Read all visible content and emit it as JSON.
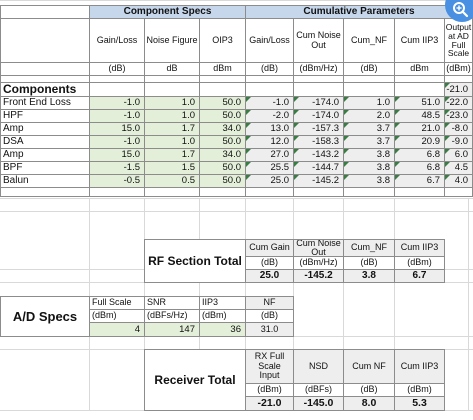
{
  "sections": {
    "component_specs": "Component  Specs",
    "cumulative_parameters": "Cumulative Parameters",
    "components_label": "Components",
    "rf_total_label": "RF Section Total",
    "ad_specs_label": "A/D Specs",
    "receiver_total_label": "Receiver Total"
  },
  "headers": {
    "gain_loss": "Gain/Loss",
    "noise_figure": "Noise Figure",
    "oip3": "OIP3",
    "cum_gain_loss": "Gain/Loss",
    "cum_noise_out": "Cum Noise Out",
    "cum_nf": "Cum_NF",
    "cum_iip3": "Cum IIP3",
    "output_ad": "Output at AD Full Scale"
  },
  "units": {
    "gain_loss": "(dB)",
    "noise_figure": "dB",
    "oip3": "dBm",
    "cum_gain_loss": "(dB)",
    "cum_noise_out": "(dBm/Hz)",
    "cum_nf": "(dB)",
    "cum_iip3": "dBm",
    "output_ad": "(dBm)"
  },
  "components_output": "-21.0",
  "rows": [
    {
      "name": "Front End Loss",
      "gain": "-1.0",
      "nf": "1.0",
      "oip3": "50.0",
      "cgain": "-1.0",
      "cnoise": "-174.0",
      "cnf": "1.0",
      "ciip3": "51.0",
      "out": "-22.0"
    },
    {
      "name": "HPF",
      "gain": "-1.0",
      "nf": "1.0",
      "oip3": "50.0",
      "cgain": "-2.0",
      "cnoise": "-174.0",
      "cnf": "2.0",
      "ciip3": "48.5",
      "out": "-23.0"
    },
    {
      "name": "Amp",
      "gain": "15.0",
      "nf": "1.7",
      "oip3": "34.0",
      "cgain": "13.0",
      "cnoise": "-157.3",
      "cnf": "3.7",
      "ciip3": "21.0",
      "out": "-8.0"
    },
    {
      "name": "DSA",
      "gain": "-1.0",
      "nf": "1.0",
      "oip3": "50.0",
      "cgain": "12.0",
      "cnoise": "-158.3",
      "cnf": "3.7",
      "ciip3": "20.9",
      "out": "-9.0"
    },
    {
      "name": "Amp",
      "gain": "15.0",
      "nf": "1.7",
      "oip3": "34.0",
      "cgain": "27.0",
      "cnoise": "-143.2",
      "cnf": "3.8",
      "ciip3": "6.8",
      "out": "6.0"
    },
    {
      "name": "BPF",
      "gain": "-1.5",
      "nf": "1.5",
      "oip3": "50.0",
      "cgain": "25.5",
      "cnoise": "-144.7",
      "cnf": "3.8",
      "ciip3": "6.8",
      "out": "4.5"
    },
    {
      "name": "Balun",
      "gain": "-0.5",
      "nf": "0.5",
      "oip3": "50.0",
      "cgain": "25.0",
      "cnoise": "-145.2",
      "cnf": "3.8",
      "ciip3": "6.7",
      "out": "4.0"
    }
  ],
  "rf_total": {
    "h_gain": "Cum Gain",
    "h_noise": "Cum Noise Out",
    "h_nf": "Cum_NF",
    "h_iip3": "Cum IIP3",
    "u_gain": "(dB)",
    "u_noise": "(dBm/Hz)",
    "u_nf": "(dB)",
    "u_iip3": "(dBm)",
    "v_gain": "25.0",
    "v_noise": "-145.2",
    "v_nf": "3.8",
    "v_iip3": "6.7"
  },
  "ad_specs": {
    "h_fullscale": "Full Scale",
    "h_snr": "SNR",
    "h_iip3": "IIP3",
    "h_nf": "NF",
    "u_fullscale": "(dBm)",
    "u_snr": "(dBFs/Hz)",
    "u_iip3": "(dBm)",
    "u_nf": "(dB)",
    "v_fullscale": "4",
    "v_snr": "147",
    "v_iip3": "36",
    "v_nf": "31.0"
  },
  "receiver_total": {
    "h_input": "RX Full Scale Input",
    "h_nsd": "NSD",
    "h_nf": "Cum NF",
    "h_iip3": "Cum IIP3",
    "u_input": "(dBm)",
    "u_nsd": "(dBFs)",
    "u_nf": "(dB)",
    "u_iip3": "(dBm)",
    "v_input": "-21.0",
    "v_nsd": "-145.0",
    "v_nf": "8.0",
    "v_iip3": "5.3"
  },
  "icons": {
    "zoom": "zoom-in-icon"
  },
  "colors": {
    "header": "#c6d7ec",
    "input": "#e3efd9",
    "calc": "#dde7f3",
    "accent": "#4a90e2"
  }
}
